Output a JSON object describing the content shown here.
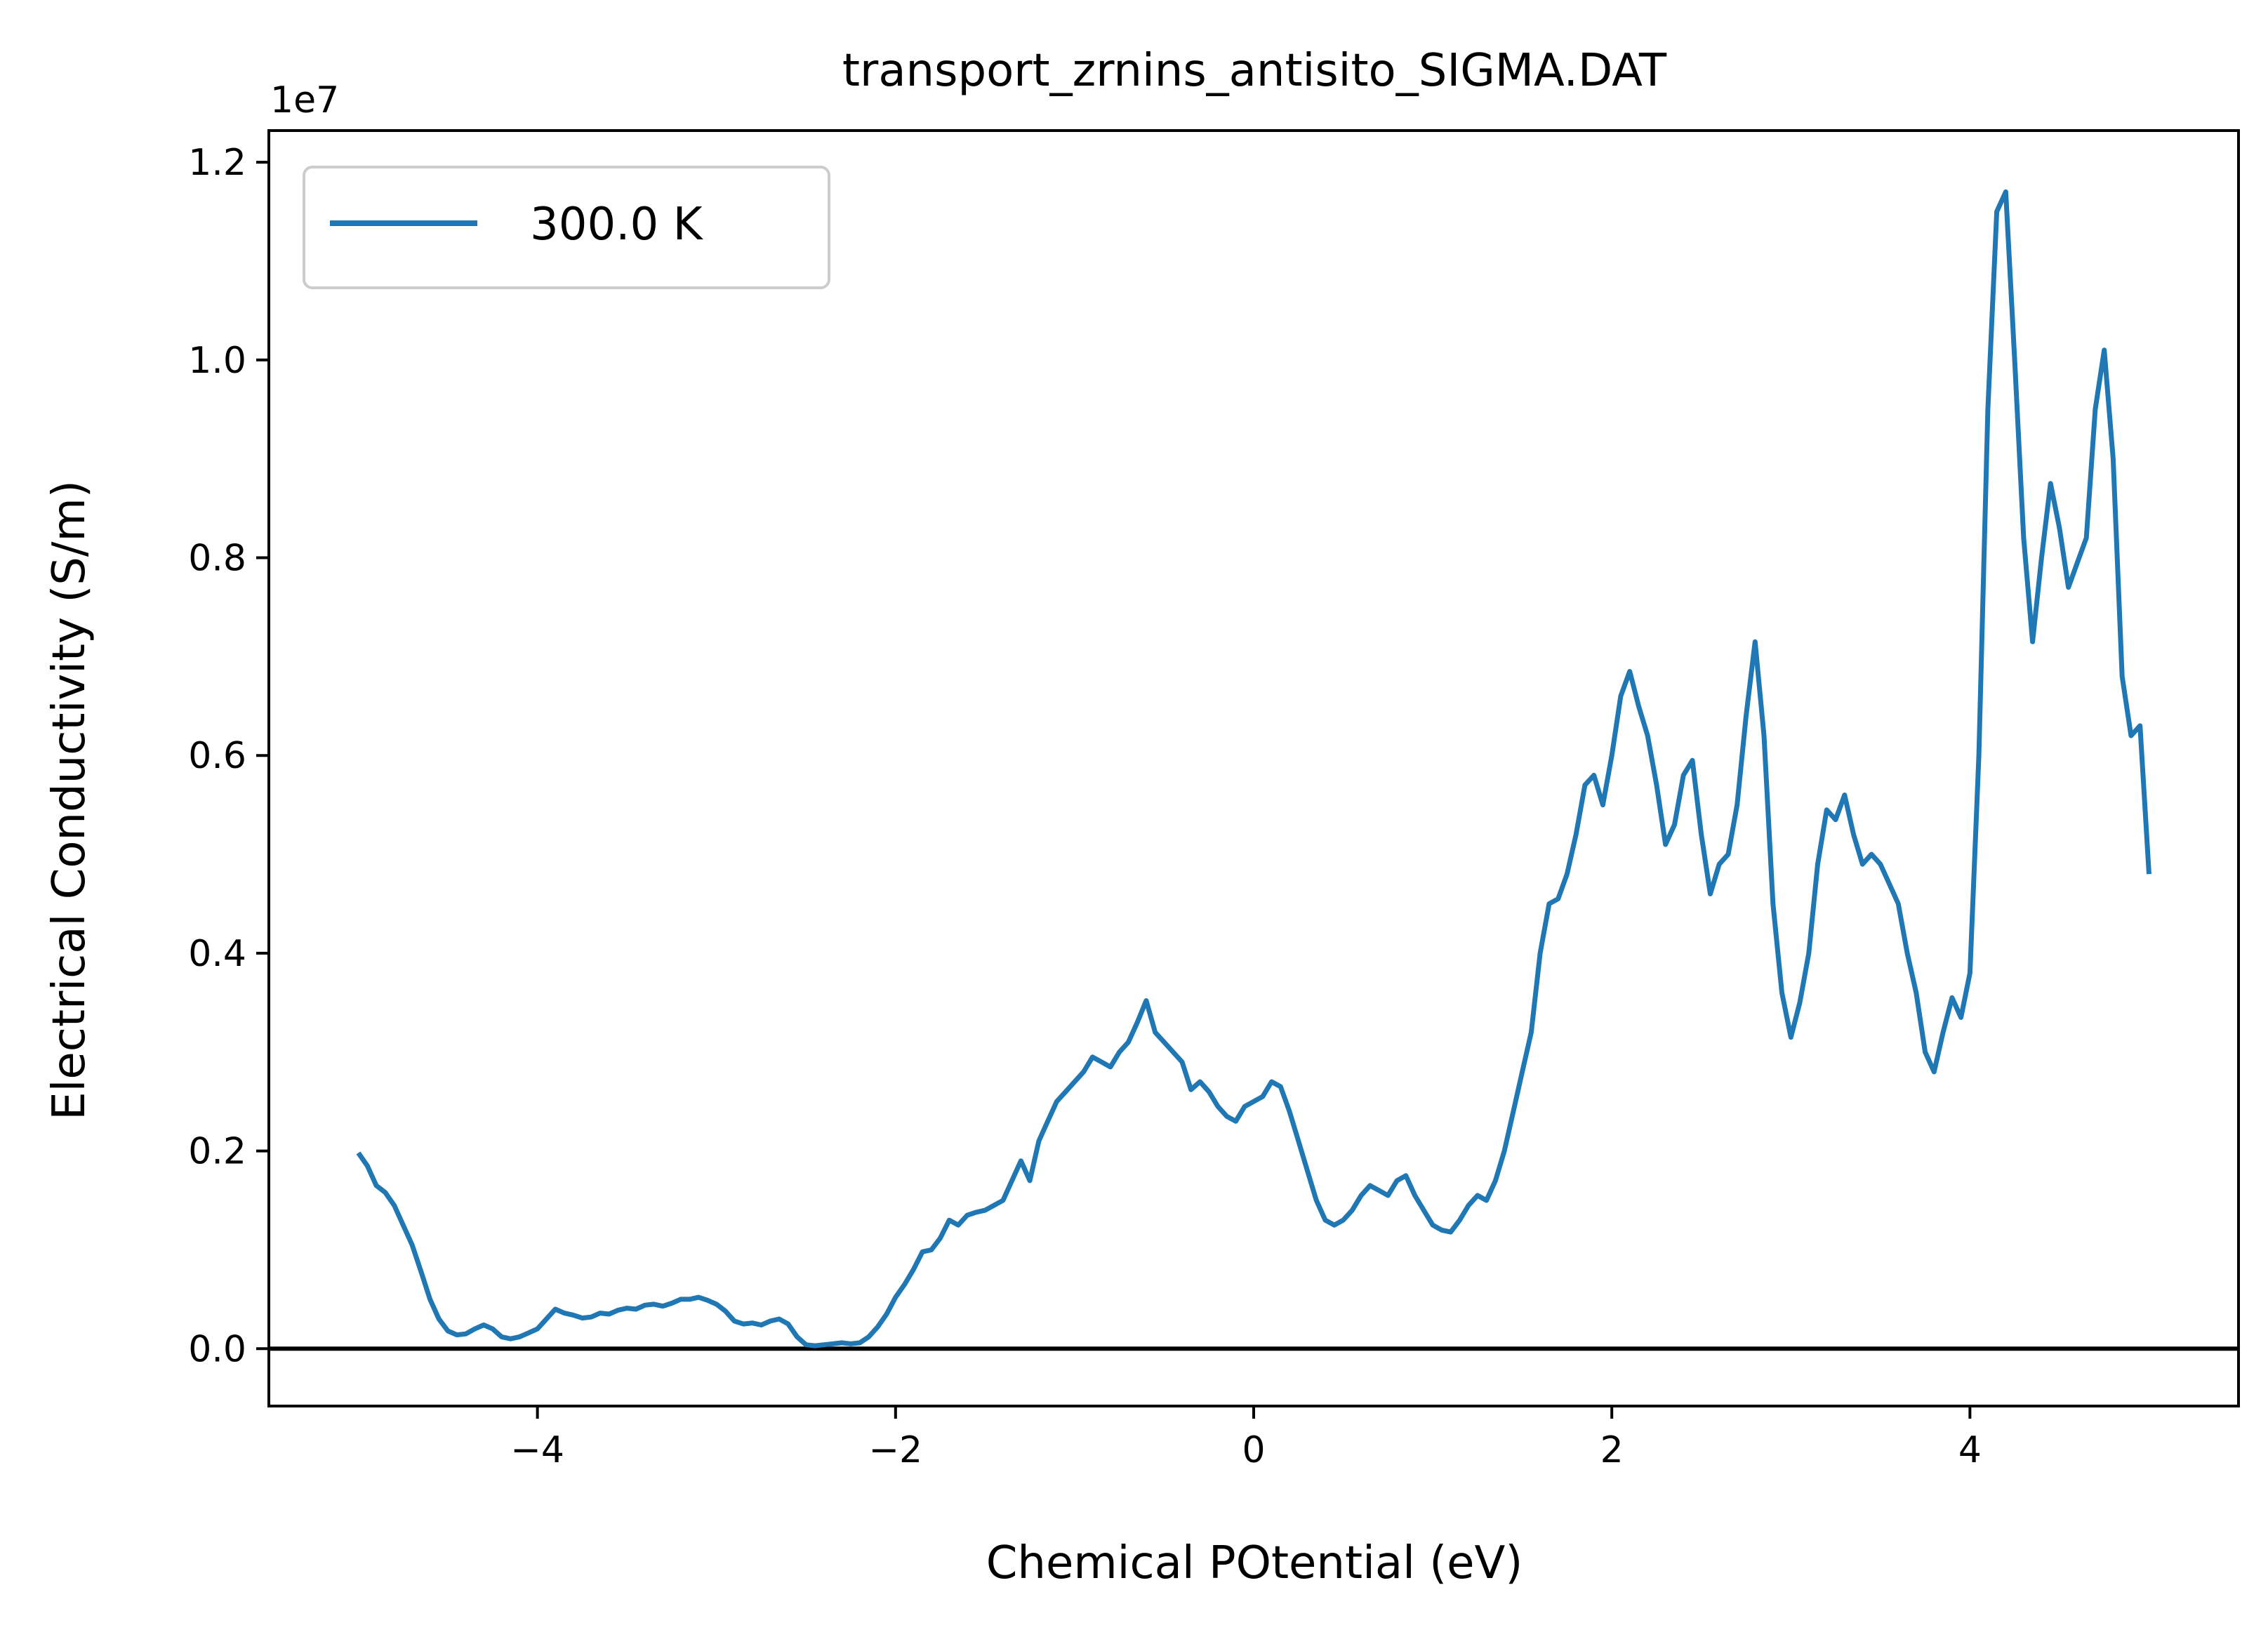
{
  "chart_data": {
    "type": "line",
    "title": "transport_zrnins_antisito_SIGMA.DAT",
    "xlabel": "Chemical POtential (eV)",
    "ylabel": "Electrical Conductivity (S/m)",
    "y_offset_label": "1e7",
    "xlim": [
      -5.5,
      5.5
    ],
    "ylim": [
      -0.058,
      1.232
    ],
    "x_ticks": [
      {
        "value": -4,
        "label": "−4"
      },
      {
        "value": -2,
        "label": "−2"
      },
      {
        "value": 0,
        "label": "0"
      },
      {
        "value": 2,
        "label": "2"
      },
      {
        "value": 4,
        "label": "4"
      }
    ],
    "y_ticks": [
      {
        "value": 0.0,
        "label": "0.0"
      },
      {
        "value": 0.2,
        "label": "0.2"
      },
      {
        "value": 0.4,
        "label": "0.4"
      },
      {
        "value": 0.6,
        "label": "0.6"
      },
      {
        "value": 0.8,
        "label": "0.8"
      },
      {
        "value": 1.0,
        "label": "1.0"
      },
      {
        "value": 1.2,
        "label": "1.2"
      }
    ],
    "legend_position": "upper-left",
    "grid": false,
    "reference_line_y": 0,
    "series": [
      {
        "name": "300.0 K",
        "color": "#1f77b4",
        "points": [
          [
            -5.0,
            0.198
          ],
          [
            -4.95,
            0.185
          ],
          [
            -4.9,
            0.165
          ],
          [
            -4.85,
            0.158
          ],
          [
            -4.8,
            0.145
          ],
          [
            -4.75,
            0.125
          ],
          [
            -4.7,
            0.105
          ],
          [
            -4.65,
            0.078
          ],
          [
            -4.6,
            0.05
          ],
          [
            -4.55,
            0.03
          ],
          [
            -4.5,
            0.018
          ],
          [
            -4.45,
            0.014
          ],
          [
            -4.4,
            0.015
          ],
          [
            -4.35,
            0.02
          ],
          [
            -4.3,
            0.024
          ],
          [
            -4.25,
            0.02
          ],
          [
            -4.2,
            0.012
          ],
          [
            -4.15,
            0.01
          ],
          [
            -4.1,
            0.012
          ],
          [
            -4.05,
            0.016
          ],
          [
            -4.0,
            0.02
          ],
          [
            -3.95,
            0.03
          ],
          [
            -3.9,
            0.04
          ],
          [
            -3.85,
            0.036
          ],
          [
            -3.8,
            0.034
          ],
          [
            -3.75,
            0.031
          ],
          [
            -3.7,
            0.032
          ],
          [
            -3.65,
            0.036
          ],
          [
            -3.6,
            0.035
          ],
          [
            -3.55,
            0.039
          ],
          [
            -3.5,
            0.041
          ],
          [
            -3.45,
            0.04
          ],
          [
            -3.4,
            0.044
          ],
          [
            -3.35,
            0.045
          ],
          [
            -3.3,
            0.043
          ],
          [
            -3.25,
            0.046
          ],
          [
            -3.2,
            0.05
          ],
          [
            -3.15,
            0.05
          ],
          [
            -3.1,
            0.052
          ],
          [
            -3.05,
            0.049
          ],
          [
            -3.0,
            0.045
          ],
          [
            -2.95,
            0.038
          ],
          [
            -2.9,
            0.028
          ],
          [
            -2.85,
            0.025
          ],
          [
            -2.8,
            0.026
          ],
          [
            -2.75,
            0.024
          ],
          [
            -2.7,
            0.028
          ],
          [
            -2.65,
            0.03
          ],
          [
            -2.6,
            0.025
          ],
          [
            -2.55,
            0.012
          ],
          [
            -2.5,
            0.004
          ],
          [
            -2.45,
            0.003
          ],
          [
            -2.4,
            0.004
          ],
          [
            -2.35,
            0.005
          ],
          [
            -2.3,
            0.006
          ],
          [
            -2.25,
            0.005
          ],
          [
            -2.2,
            0.006
          ],
          [
            -2.15,
            0.012
          ],
          [
            -2.1,
            0.022
          ],
          [
            -2.05,
            0.035
          ],
          [
            -2.0,
            0.052
          ],
          [
            -1.95,
            0.065
          ],
          [
            -1.9,
            0.08
          ],
          [
            -1.85,
            0.098
          ],
          [
            -1.8,
            0.1
          ],
          [
            -1.75,
            0.112
          ],
          [
            -1.7,
            0.13
          ],
          [
            -1.65,
            0.125
          ],
          [
            -1.6,
            0.135
          ],
          [
            -1.55,
            0.138
          ],
          [
            -1.5,
            0.14
          ],
          [
            -1.45,
            0.145
          ],
          [
            -1.4,
            0.15
          ],
          [
            -1.35,
            0.17
          ],
          [
            -1.3,
            0.19
          ],
          [
            -1.25,
            0.17
          ],
          [
            -1.2,
            0.21
          ],
          [
            -1.15,
            0.23
          ],
          [
            -1.1,
            0.25
          ],
          [
            -1.05,
            0.26
          ],
          [
            -1.0,
            0.27
          ],
          [
            -0.95,
            0.28
          ],
          [
            -0.9,
            0.295
          ],
          [
            -0.85,
            0.29
          ],
          [
            -0.8,
            0.285
          ],
          [
            -0.75,
            0.3
          ],
          [
            -0.7,
            0.31
          ],
          [
            -0.65,
            0.33
          ],
          [
            -0.6,
            0.352
          ],
          [
            -0.55,
            0.32
          ],
          [
            -0.5,
            0.31
          ],
          [
            -0.45,
            0.3
          ],
          [
            -0.4,
            0.29
          ],
          [
            -0.35,
            0.262
          ],
          [
            -0.3,
            0.27
          ],
          [
            -0.25,
            0.26
          ],
          [
            -0.2,
            0.245
          ],
          [
            -0.15,
            0.235
          ],
          [
            -0.1,
            0.23
          ],
          [
            -0.05,
            0.245
          ],
          [
            0.0,
            0.25
          ],
          [
            0.05,
            0.255
          ],
          [
            0.1,
            0.27
          ],
          [
            0.15,
            0.265
          ],
          [
            0.2,
            0.24
          ],
          [
            0.25,
            0.21
          ],
          [
            0.3,
            0.18
          ],
          [
            0.35,
            0.15
          ],
          [
            0.4,
            0.13
          ],
          [
            0.45,
            0.125
          ],
          [
            0.5,
            0.13
          ],
          [
            0.55,
            0.14
          ],
          [
            0.6,
            0.155
          ],
          [
            0.65,
            0.165
          ],
          [
            0.7,
            0.16
          ],
          [
            0.75,
            0.155
          ],
          [
            0.8,
            0.17
          ],
          [
            0.85,
            0.175
          ],
          [
            0.9,
            0.155
          ],
          [
            0.95,
            0.14
          ],
          [
            1.0,
            0.125
          ],
          [
            1.05,
            0.12
          ],
          [
            1.1,
            0.118
          ],
          [
            1.15,
            0.13
          ],
          [
            1.2,
            0.145
          ],
          [
            1.25,
            0.155
          ],
          [
            1.3,
            0.15
          ],
          [
            1.35,
            0.17
          ],
          [
            1.4,
            0.2
          ],
          [
            1.45,
            0.24
          ],
          [
            1.5,
            0.28
          ],
          [
            1.55,
            0.32
          ],
          [
            1.6,
            0.4
          ],
          [
            1.65,
            0.45
          ],
          [
            1.7,
            0.455
          ],
          [
            1.75,
            0.48
          ],
          [
            1.8,
            0.52
          ],
          [
            1.85,
            0.57
          ],
          [
            1.9,
            0.58
          ],
          [
            1.95,
            0.55
          ],
          [
            2.0,
            0.6
          ],
          [
            2.05,
            0.66
          ],
          [
            2.1,
            0.685
          ],
          [
            2.15,
            0.65
          ],
          [
            2.2,
            0.62
          ],
          [
            2.25,
            0.57
          ],
          [
            2.3,
            0.51
          ],
          [
            2.35,
            0.53
          ],
          [
            2.4,
            0.58
          ],
          [
            2.45,
            0.595
          ],
          [
            2.5,
            0.52
          ],
          [
            2.55,
            0.46
          ],
          [
            2.6,
            0.49
          ],
          [
            2.65,
            0.5
          ],
          [
            2.7,
            0.55
          ],
          [
            2.75,
            0.64
          ],
          [
            2.8,
            0.715
          ],
          [
            2.85,
            0.62
          ],
          [
            2.9,
            0.45
          ],
          [
            2.95,
            0.36
          ],
          [
            3.0,
            0.315
          ],
          [
            3.05,
            0.35
          ],
          [
            3.1,
            0.4
          ],
          [
            3.15,
            0.49
          ],
          [
            3.2,
            0.545
          ],
          [
            3.25,
            0.535
          ],
          [
            3.3,
            0.56
          ],
          [
            3.35,
            0.52
          ],
          [
            3.4,
            0.49
          ],
          [
            3.45,
            0.5
          ],
          [
            3.5,
            0.49
          ],
          [
            3.55,
            0.47
          ],
          [
            3.6,
            0.45
          ],
          [
            3.65,
            0.4
          ],
          [
            3.7,
            0.36
          ],
          [
            3.75,
            0.3
          ],
          [
            3.8,
            0.28
          ],
          [
            3.85,
            0.32
          ],
          [
            3.9,
            0.355
          ],
          [
            3.95,
            0.335
          ],
          [
            4.0,
            0.38
          ],
          [
            4.05,
            0.6
          ],
          [
            4.1,
            0.95
          ],
          [
            4.15,
            1.15
          ],
          [
            4.2,
            1.17
          ],
          [
            4.25,
            1.0
          ],
          [
            4.3,
            0.82
          ],
          [
            4.35,
            0.715
          ],
          [
            4.4,
            0.8
          ],
          [
            4.45,
            0.875
          ],
          [
            4.5,
            0.83
          ],
          [
            4.55,
            0.77
          ],
          [
            4.6,
            0.795
          ],
          [
            4.65,
            0.82
          ],
          [
            4.7,
            0.95
          ],
          [
            4.75,
            1.01
          ],
          [
            4.8,
            0.9
          ],
          [
            4.85,
            0.68
          ],
          [
            4.9,
            0.62
          ],
          [
            4.95,
            0.63
          ],
          [
            5.0,
            0.48
          ]
        ]
      }
    ]
  }
}
